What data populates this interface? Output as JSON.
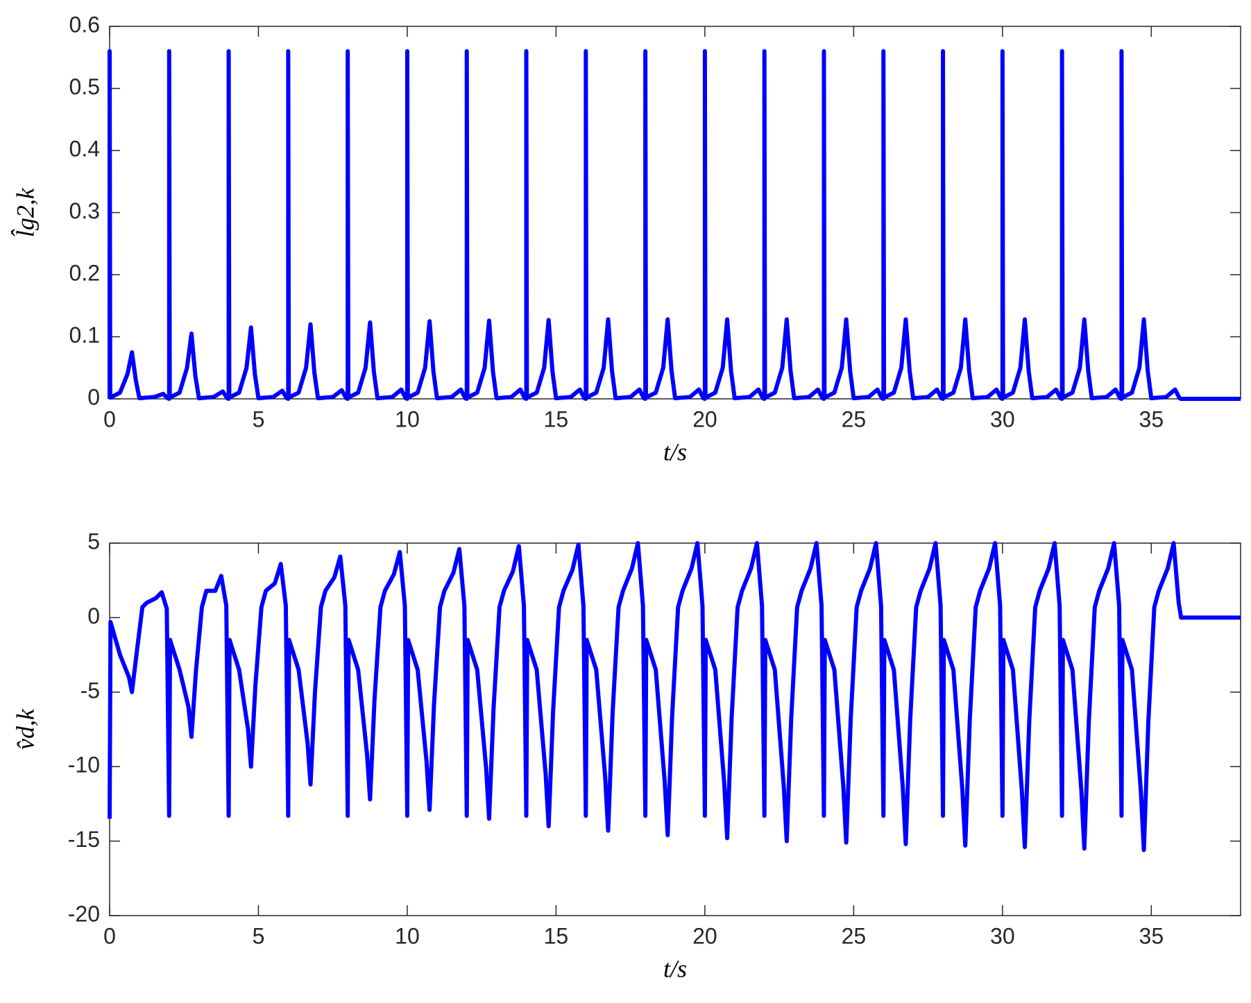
{
  "chart_data": [
    {
      "type": "line",
      "xlabel": "t/s",
      "ylabel": "l̂g2,k",
      "color": "#0000ff",
      "xlim": [
        0,
        38
      ],
      "xticks": [
        0,
        5,
        10,
        15,
        20,
        25,
        30,
        35
      ],
      "ylim": [
        0,
        0.6
      ],
      "yticks": [
        0,
        0.1,
        0.2,
        0.3,
        0.4,
        0.5,
        0.6
      ],
      "x": [
        0,
        0,
        0.02,
        0.35,
        0.6,
        0.75,
        0.88,
        1,
        1.5,
        1.8,
        1.95,
        2,
        2,
        2.02,
        2.35,
        2.6,
        2.75,
        2.88,
        3,
        3.5,
        3.8,
        3.95,
        4,
        4,
        4.02,
        4.35,
        4.6,
        4.75,
        4.88,
        5,
        5.5,
        5.8,
        5.95,
        6,
        6,
        6.02,
        6.35,
        6.6,
        6.75,
        6.88,
        7,
        7.5,
        7.8,
        7.95,
        8,
        8,
        8.02,
        8.35,
        8.6,
        8.75,
        8.88,
        9,
        9.5,
        9.8,
        9.95,
        10,
        10,
        10.02,
        10.35,
        10.6,
        10.75,
        10.88,
        11,
        11.5,
        11.8,
        11.95,
        12,
        12,
        12.02,
        12.35,
        12.6,
        12.75,
        12.88,
        13,
        13.5,
        13.8,
        13.95,
        14,
        14,
        14.02,
        14.35,
        14.6,
        14.75,
        14.88,
        15,
        15.5,
        15.8,
        15.95,
        16,
        16,
        16.02,
        16.35,
        16.6,
        16.75,
        16.88,
        17,
        17.5,
        17.8,
        17.95,
        18,
        18,
        18.02,
        18.35,
        18.6,
        18.75,
        18.88,
        19,
        19.5,
        19.8,
        19.95,
        20,
        20,
        20.02,
        20.35,
        20.6,
        20.75,
        20.88,
        21,
        21.5,
        21.8,
        21.95,
        22,
        22,
        22.02,
        22.35,
        22.6,
        22.75,
        22.88,
        23,
        23.5,
        23.8,
        23.95,
        24,
        24,
        24.02,
        24.35,
        24.6,
        24.75,
        24.88,
        25,
        25.5,
        25.8,
        25.95,
        26,
        26,
        26.02,
        26.35,
        26.6,
        26.75,
        26.88,
        27,
        27.5,
        27.8,
        27.95,
        28,
        28,
        28.02,
        28.35,
        28.6,
        28.75,
        28.88,
        29,
        29.5,
        29.8,
        29.95,
        30,
        30,
        30.02,
        30.35,
        30.6,
        30.75,
        30.88,
        31,
        31.5,
        31.8,
        31.95,
        32,
        32,
        32.02,
        32.35,
        32.6,
        32.75,
        32.88,
        33,
        33.5,
        33.8,
        33.95,
        34,
        34,
        34.02,
        34.35,
        34.6,
        34.75,
        34.88,
        35,
        35.5,
        35.8,
        35.95,
        36,
        38
      ],
      "values": [
        0,
        0.56,
        0.002,
        0.01,
        0.04,
        0.075,
        0.03,
        0.001,
        0.003,
        0.008,
        0.001,
        0,
        0.56,
        0.002,
        0.01,
        0.05,
        0.105,
        0.037,
        0.001,
        0.003,
        0.012,
        0.001,
        0,
        0.56,
        0.002,
        0.01,
        0.05,
        0.115,
        0.04,
        0.001,
        0.003,
        0.013,
        0.001,
        0,
        0.56,
        0.002,
        0.01,
        0.05,
        0.12,
        0.042,
        0.001,
        0.003,
        0.014,
        0.001,
        0,
        0.56,
        0.002,
        0.01,
        0.05,
        0.123,
        0.043,
        0.001,
        0.003,
        0.015,
        0.001,
        0,
        0.56,
        0.002,
        0.01,
        0.05,
        0.125,
        0.044,
        0.001,
        0.003,
        0.015,
        0.001,
        0,
        0.56,
        0.002,
        0.01,
        0.05,
        0.126,
        0.044,
        0.001,
        0.003,
        0.015,
        0.001,
        0,
        0.56,
        0.002,
        0.01,
        0.05,
        0.127,
        0.044,
        0.001,
        0.003,
        0.015,
        0.001,
        0,
        0.56,
        0.002,
        0.01,
        0.05,
        0.128,
        0.045,
        0.001,
        0.003,
        0.015,
        0.001,
        0,
        0.56,
        0.002,
        0.01,
        0.05,
        0.128,
        0.045,
        0.001,
        0.003,
        0.015,
        0.001,
        0,
        0.56,
        0.002,
        0.01,
        0.05,
        0.128,
        0.045,
        0.001,
        0.003,
        0.015,
        0.001,
        0,
        0.56,
        0.002,
        0.01,
        0.05,
        0.128,
        0.045,
        0.001,
        0.003,
        0.015,
        0.001,
        0,
        0.56,
        0.002,
        0.01,
        0.05,
        0.128,
        0.045,
        0.001,
        0.003,
        0.015,
        0.001,
        0,
        0.56,
        0.002,
        0.01,
        0.05,
        0.128,
        0.045,
        0.001,
        0.003,
        0.015,
        0.001,
        0,
        0.56,
        0.002,
        0.01,
        0.05,
        0.128,
        0.045,
        0.001,
        0.003,
        0.015,
        0.001,
        0,
        0.56,
        0.002,
        0.01,
        0.05,
        0.128,
        0.045,
        0.001,
        0.003,
        0.015,
        0.001,
        0,
        0.56,
        0.002,
        0.01,
        0.05,
        0.128,
        0.045,
        0.001,
        0.003,
        0.015,
        0.001,
        0,
        0.56,
        0.002,
        0.01,
        0.05,
        0.128,
        0.045,
        0.001,
        0.003,
        0.015,
        0.001,
        0,
        0
      ]
    },
    {
      "type": "line",
      "xlabel": "t/s",
      "ylabel": "v̂d,k",
      "color": "#0000ff",
      "xlim": [
        0,
        38
      ],
      "xticks": [
        0,
        5,
        10,
        15,
        20,
        25,
        30,
        35
      ],
      "ylim": [
        -20,
        5
      ],
      "yticks": [
        -20,
        -15,
        -10,
        -5,
        0,
        5
      ],
      "x": [
        0,
        0.03,
        0.35,
        0.65,
        0.75,
        0.9,
        1.1,
        1.25,
        1.55,
        1.75,
        1.92,
        2,
        2.03,
        2.35,
        2.65,
        2.75,
        2.9,
        3.1,
        3.25,
        3.55,
        3.75,
        3.92,
        4,
        4.03,
        4.35,
        4.65,
        4.75,
        4.9,
        5.1,
        5.25,
        5.55,
        5.75,
        5.92,
        6,
        6.03,
        6.35,
        6.65,
        6.75,
        6.9,
        7.1,
        7.25,
        7.55,
        7.75,
        7.92,
        8,
        8.03,
        8.35,
        8.65,
        8.75,
        8.9,
        9.1,
        9.25,
        9.55,
        9.75,
        9.92,
        10,
        10.03,
        10.35,
        10.65,
        10.75,
        10.9,
        11.1,
        11.25,
        11.55,
        11.75,
        11.92,
        12,
        12.03,
        12.35,
        12.65,
        12.75,
        12.9,
        13.1,
        13.25,
        13.55,
        13.75,
        13.92,
        14,
        14.03,
        14.35,
        14.65,
        14.75,
        14.9,
        15.1,
        15.25,
        15.55,
        15.75,
        15.92,
        16,
        16.03,
        16.35,
        16.65,
        16.75,
        16.9,
        17.1,
        17.25,
        17.55,
        17.75,
        17.92,
        18,
        18.03,
        18.35,
        18.65,
        18.75,
        18.9,
        19.1,
        19.25,
        19.55,
        19.75,
        19.92,
        20,
        20.03,
        20.35,
        20.65,
        20.75,
        20.9,
        21.1,
        21.25,
        21.55,
        21.75,
        21.92,
        22,
        22.03,
        22.35,
        22.65,
        22.75,
        22.9,
        23.1,
        23.25,
        23.55,
        23.75,
        23.92,
        24,
        24.03,
        24.35,
        24.65,
        24.75,
        24.9,
        25.1,
        25.25,
        25.55,
        25.75,
        25.92,
        26,
        26.03,
        26.35,
        26.65,
        26.75,
        26.9,
        27.1,
        27.25,
        27.55,
        27.75,
        27.92,
        28,
        28.03,
        28.35,
        28.65,
        28.75,
        28.9,
        29.1,
        29.25,
        29.55,
        29.75,
        29.92,
        30,
        30.03,
        30.35,
        30.65,
        30.75,
        30.9,
        31.1,
        31.25,
        31.55,
        31.75,
        31.92,
        32,
        32.03,
        32.35,
        32.65,
        32.75,
        32.9,
        33.1,
        33.25,
        33.55,
        33.75,
        33.92,
        34,
        34.03,
        34.35,
        34.65,
        34.75,
        34.9,
        35.1,
        35.25,
        35.55,
        35.75,
        35.92,
        36,
        38
      ],
      "values": [
        -13.5,
        -0.3,
        -2.5,
        -4,
        -5,
        -2.5,
        0.7,
        1,
        1.3,
        1.7,
        0.6,
        -13.3,
        -1.5,
        -3.5,
        -6,
        -8,
        -3.6,
        0.7,
        1.8,
        1.8,
        2.8,
        0.8,
        -13.3,
        -1.5,
        -3.5,
        -7.5,
        -10,
        -4.5,
        0.7,
        1.8,
        2.3,
        3.6,
        0.8,
        -13.3,
        -1.5,
        -3.5,
        -8.4,
        -11.2,
        -5,
        0.7,
        1.8,
        2.7,
        4.1,
        0.8,
        -13.3,
        -1.5,
        -3.5,
        -9.2,
        -12.2,
        -5.5,
        0.7,
        1.8,
        2.9,
        4.4,
        0.8,
        -13.3,
        -1.5,
        -3.5,
        -9.7,
        -12.9,
        -5.8,
        0.7,
        1.8,
        3,
        4.6,
        0.8,
        -13.3,
        -1.5,
        -3.5,
        -10.1,
        -13.5,
        -6.1,
        0.7,
        1.8,
        3.1,
        4.8,
        0.8,
        -13.3,
        -1.5,
        -3.5,
        -10.5,
        -14,
        -6.3,
        0.7,
        1.8,
        3.2,
        4.9,
        0.8,
        -13.3,
        -1.5,
        -3.5,
        -10.7,
        -14.3,
        -6.4,
        0.7,
        1.8,
        3.3,
        5,
        0.8,
        -13.3,
        -1.5,
        -3.5,
        -11,
        -14.6,
        -6.6,
        0.7,
        1.8,
        3.3,
        5,
        0.8,
        -13.3,
        -1.5,
        -3.5,
        -11.1,
        -14.8,
        -6.7,
        0.7,
        1.8,
        3.3,
        5,
        0.8,
        -13.3,
        -1.5,
        -3.5,
        -11.3,
        -15,
        -6.8,
        0.7,
        1.8,
        3.3,
        5,
        0.8,
        -13.3,
        -1.5,
        -3.5,
        -11.3,
        -15.1,
        -6.8,
        0.7,
        1.8,
        3.3,
        5,
        0.8,
        -13.3,
        -1.5,
        -3.5,
        -11.4,
        -15.2,
        -6.8,
        0.7,
        1.8,
        3.3,
        5,
        0.8,
        -13.3,
        -1.5,
        -3.5,
        -11.5,
        -15.3,
        -6.9,
        0.7,
        1.8,
        3.3,
        5,
        0.8,
        -13.3,
        -1.5,
        -3.5,
        -11.6,
        -15.4,
        -6.9,
        0.7,
        1.8,
        3.3,
        5,
        0.8,
        -13.3,
        -1.5,
        -3.5,
        -11.6,
        -15.5,
        -7,
        0.7,
        1.8,
        3.3,
        5,
        0.8,
        -13.3,
        -1.5,
        -3.5,
        -11.7,
        -15.6,
        -7,
        0.7,
        1.8,
        3.3,
        5,
        1,
        0,
        0
      ]
    }
  ]
}
